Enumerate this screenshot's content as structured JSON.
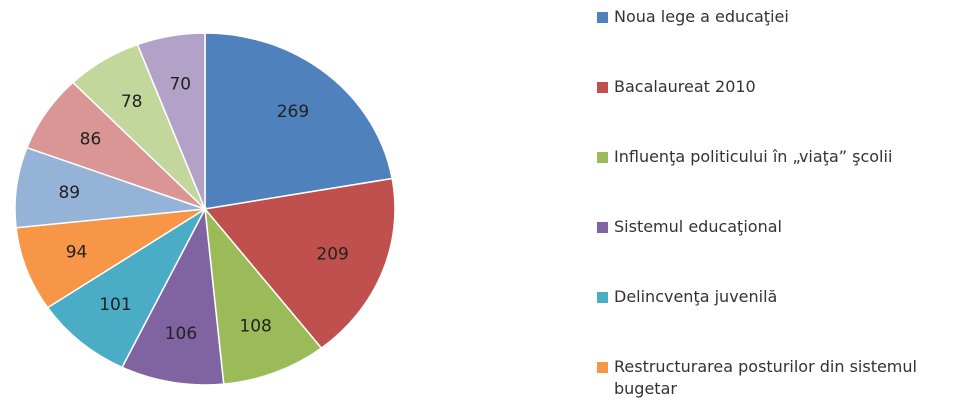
{
  "chart_data": {
    "type": "pie",
    "categories": [
      "Noua lege a educaţiei",
      "Bacalaureat 2010",
      "Influenţa politicului în „viaţa” şcolii",
      "Sistemul educaţional",
      "Delincvenţa juvenilă",
      "Restructurarea posturilor din sistemul bugetar",
      null,
      null,
      null,
      null
    ],
    "values": [
      269,
      209,
      108,
      106,
      101,
      94,
      89,
      86,
      78,
      70
    ],
    "colors": [
      "#4f81bd",
      "#c0504d",
      "#9bbb59",
      "#8064a2",
      "#4bacc6",
      "#f79646",
      "#95b3d7",
      "#d99694",
      "#c3d69b",
      "#b3a2c7"
    ]
  }
}
